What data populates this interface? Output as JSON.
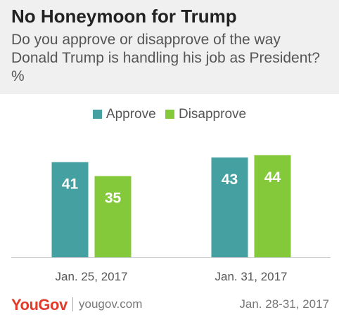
{
  "title": "No Honeymoon for Trump",
  "subtitle": "Do you approve or disapprove of the way Donald Trump is handling his job as President? %",
  "colors": {
    "approve": "#45a0a2",
    "disapprove": "#84c93a",
    "axis": "#cccccc",
    "header_bg": "#f0f0f0",
    "logo": "#e23b2a"
  },
  "chart_data": {
    "type": "bar",
    "categories": [
      "Jan. 25, 2017",
      "Jan. 31, 2017"
    ],
    "series": [
      {
        "name": "Approve",
        "values": [
          41,
          43
        ],
        "color": "#45a0a2"
      },
      {
        "name": "Disapprove",
        "values": [
          35,
          44
        ],
        "color": "#84c93a"
      }
    ],
    "ylim": [
      0,
      50
    ],
    "grid": false,
    "legend": "top-center",
    "data_labels": true
  },
  "footer": {
    "logo": "YouGov",
    "site": "yougov.com",
    "dates": "Jan. 28-31, 2017"
  }
}
